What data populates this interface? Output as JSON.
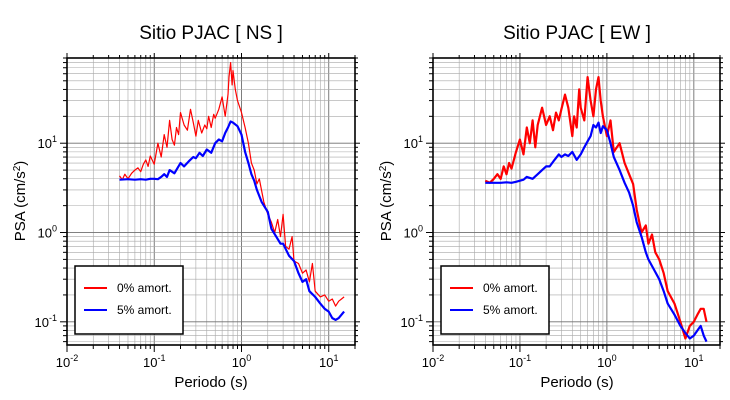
{
  "chart_data": [
    {
      "type": "line",
      "title": "Sitio PJAC [ NS ]",
      "xlabel": "Periodo (s)",
      "ylabel_main": "PSA (cm/s",
      "ylabel_sup": "2",
      "ylabel_end": ")",
      "x_scale": "log",
      "y_scale": "log",
      "xlim": [
        0.01,
        20
      ],
      "ylim": [
        0.055,
        90
      ],
      "grid": true,
      "legend_position": "bottom-left",
      "x_ticks": [
        {
          "base": "10",
          "exp": "-2",
          "value": 0.01
        },
        {
          "base": "10",
          "exp": "-1",
          "value": 0.1
        },
        {
          "base": "10",
          "exp": "0",
          "value": 1
        },
        {
          "base": "10",
          "exp": "1",
          "value": 10
        }
      ],
      "y_ticks": [
        {
          "base": "10",
          "exp": "-1",
          "value": 0.1
        },
        {
          "base": "10",
          "exp": "0",
          "value": 1
        },
        {
          "base": "10",
          "exp": "1",
          "value": 10
        }
      ],
      "series": [
        {
          "name": "0% amort.",
          "color": "#ff0000",
          "width": 1.2,
          "x": [
            0.04,
            0.043,
            0.046,
            0.05,
            0.055,
            0.06,
            0.065,
            0.07,
            0.075,
            0.08,
            0.085,
            0.09,
            0.1,
            0.11,
            0.12,
            0.13,
            0.14,
            0.15,
            0.16,
            0.17,
            0.18,
            0.19,
            0.2,
            0.22,
            0.24,
            0.26,
            0.28,
            0.3,
            0.32,
            0.35,
            0.38,
            0.4,
            0.42,
            0.45,
            0.48,
            0.5,
            0.55,
            0.6,
            0.65,
            0.7,
            0.72,
            0.75,
            0.78,
            0.8,
            0.85,
            0.9,
            1.0,
            1.1,
            1.2,
            1.3,
            1.4,
            1.5,
            1.6,
            1.8,
            2.0,
            2.2,
            2.4,
            2.6,
            2.8,
            3.0,
            3.2,
            3.5,
            3.8,
            4.0,
            4.5,
            5.0,
            5.5,
            6.0,
            6.5,
            7.0,
            8.0,
            9.0,
            10.0,
            11.0,
            12.0,
            13.0,
            14.0,
            15.0
          ],
          "y": [
            4.3,
            3.9,
            4.5,
            4.0,
            4.6,
            5.0,
            5.3,
            4.8,
            5.8,
            6.5,
            5.5,
            7.2,
            5.8,
            10.0,
            7.0,
            12.5,
            9.0,
            18.0,
            11.0,
            9.5,
            15.0,
            12.5,
            22.0,
            16.0,
            14.0,
            24.0,
            17.0,
            12.0,
            18.0,
            13.0,
            16.0,
            14.5,
            20.0,
            15.0,
            21.0,
            19.0,
            24.0,
            33.0,
            20.0,
            35.0,
            55.0,
            80.0,
            45.0,
            65.0,
            40.0,
            30.0,
            22.0,
            15.0,
            10.0,
            6.0,
            5.0,
            3.5,
            4.0,
            2.2,
            1.6,
            1.3,
            1.0,
            1.4,
            0.9,
            1.6,
            0.7,
            0.65,
            0.9,
            0.48,
            0.45,
            0.35,
            0.38,
            0.28,
            0.45,
            0.22,
            0.19,
            0.2,
            0.17,
            0.18,
            0.15,
            0.17,
            0.18,
            0.19
          ]
        },
        {
          "name": "5% amort.",
          "color": "#0000ff",
          "width": 2.2,
          "x": [
            0.04,
            0.05,
            0.06,
            0.07,
            0.08,
            0.09,
            0.1,
            0.11,
            0.12,
            0.13,
            0.14,
            0.15,
            0.17,
            0.2,
            0.22,
            0.25,
            0.28,
            0.3,
            0.33,
            0.36,
            0.4,
            0.45,
            0.5,
            0.55,
            0.6,
            0.65,
            0.7,
            0.75,
            0.8,
            0.9,
            1.0,
            1.1,
            1.2,
            1.3,
            1.4,
            1.5,
            1.7,
            2.0,
            2.2,
            2.5,
            2.8,
            3.0,
            3.5,
            4.0,
            4.5,
            5.0,
            5.5,
            6.0,
            7.0,
            8.0,
            9.0,
            10.0,
            11.0,
            12.0,
            13.0,
            14.0,
            15.0
          ],
          "y": [
            3.9,
            3.95,
            3.9,
            3.95,
            3.9,
            4.0,
            4.0,
            3.95,
            4.2,
            4.5,
            4.2,
            5.0,
            4.6,
            6.0,
            5.5,
            6.3,
            7.0,
            6.8,
            7.8,
            7.2,
            8.5,
            7.8,
            10.0,
            11.0,
            10.5,
            13.0,
            15.0,
            17.5,
            17.0,
            15.5,
            12.5,
            8.0,
            6.0,
            4.5,
            3.8,
            3.0,
            2.2,
            1.7,
            1.1,
            0.9,
            0.75,
            0.75,
            0.55,
            0.48,
            0.35,
            0.28,
            0.3,
            0.22,
            0.19,
            0.16,
            0.14,
            0.13,
            0.11,
            0.105,
            0.11,
            0.12,
            0.13
          ]
        }
      ]
    },
    {
      "type": "line",
      "title": "Sitio PJAC [ EW ]",
      "xlabel": "Periodo (s)",
      "ylabel_main": "PSA (cm/s",
      "ylabel_sup": "2",
      "ylabel_end": ")",
      "x_scale": "log",
      "y_scale": "log",
      "xlim": [
        0.01,
        20
      ],
      "ylim": [
        0.055,
        90
      ],
      "grid": true,
      "legend_position": "bottom-left",
      "x_ticks": [
        {
          "base": "10",
          "exp": "-2",
          "value": 0.01
        },
        {
          "base": "10",
          "exp": "-1",
          "value": 0.1
        },
        {
          "base": "10",
          "exp": "0",
          "value": 1
        },
        {
          "base": "10",
          "exp": "1",
          "value": 10
        }
      ],
      "y_ticks": [
        {
          "base": "10",
          "exp": "-1",
          "value": 0.1
        },
        {
          "base": "10",
          "exp": "0",
          "value": 1
        },
        {
          "base": "10",
          "exp": "1",
          "value": 10
        }
      ],
      "series": [
        {
          "name": "0% amort.",
          "color": "#ff0000",
          "width": 2.2,
          "x": [
            0.04,
            0.045,
            0.05,
            0.055,
            0.06,
            0.065,
            0.07,
            0.075,
            0.08,
            0.09,
            0.1,
            0.11,
            0.12,
            0.13,
            0.14,
            0.15,
            0.16,
            0.18,
            0.2,
            0.22,
            0.24,
            0.26,
            0.28,
            0.3,
            0.33,
            0.36,
            0.4,
            0.42,
            0.45,
            0.48,
            0.5,
            0.55,
            0.6,
            0.65,
            0.7,
            0.75,
            0.8,
            0.85,
            0.9,
            1.0,
            1.1,
            1.2,
            1.4,
            1.6,
            1.8,
            2.0,
            2.2,
            2.5,
            2.8,
            3.0,
            3.3,
            3.6,
            4.0,
            4.5,
            5.0,
            6.0,
            7.0,
            8.0,
            9.0,
            10.0,
            11.0,
            12.0,
            13.0,
            14.0
          ],
          "y": [
            3.8,
            3.6,
            4.0,
            4.5,
            4.0,
            5.5,
            4.5,
            6.0,
            5.2,
            8.0,
            11.0,
            7.5,
            15.0,
            10.0,
            18.0,
            9.0,
            16.0,
            25.0,
            16.0,
            20.0,
            14.0,
            22.0,
            18.0,
            24.0,
            35.0,
            25.0,
            12.0,
            20.0,
            15.0,
            40.0,
            25.0,
            18.0,
            55.0,
            30.0,
            20.0,
            40.0,
            55.0,
            30.0,
            20.0,
            12.0,
            18.0,
            8.0,
            10.0,
            6.0,
            4.5,
            3.5,
            1.8,
            1.0,
            1.2,
            0.75,
            0.95,
            0.6,
            0.5,
            0.35,
            0.22,
            0.16,
            0.1,
            0.065,
            0.09,
            0.1,
            0.12,
            0.14,
            0.14,
            0.1
          ]
        },
        {
          "name": "5% amort.",
          "color": "#0000ff",
          "width": 2.2,
          "x": [
            0.04,
            0.05,
            0.06,
            0.07,
            0.08,
            0.09,
            0.1,
            0.11,
            0.12,
            0.14,
            0.16,
            0.18,
            0.2,
            0.22,
            0.25,
            0.28,
            0.3,
            0.33,
            0.36,
            0.4,
            0.45,
            0.5,
            0.55,
            0.6,
            0.65,
            0.7,
            0.75,
            0.8,
            0.85,
            0.9,
            1.0,
            1.1,
            1.2,
            1.4,
            1.6,
            1.8,
            2.0,
            2.2,
            2.5,
            2.8,
            3.0,
            3.5,
            4.0,
            4.5,
            5.0,
            6.0,
            7.0,
            8.0,
            9.0,
            10.0,
            11.0,
            12.0,
            13.0,
            14.0
          ],
          "y": [
            3.6,
            3.6,
            3.6,
            3.65,
            3.6,
            3.7,
            3.8,
            3.9,
            4.2,
            4.0,
            4.5,
            5.0,
            5.5,
            5.5,
            6.5,
            7.5,
            7.0,
            7.5,
            7.2,
            8.0,
            6.5,
            7.5,
            9.0,
            10.5,
            12.0,
            16.0,
            15.0,
            17.0,
            13.0,
            15.5,
            14.0,
            10.0,
            7.0,
            5.0,
            3.6,
            2.8,
            2.0,
            1.3,
            0.9,
            0.6,
            0.5,
            0.38,
            0.3,
            0.22,
            0.16,
            0.12,
            0.09,
            0.075,
            0.065,
            0.07,
            0.08,
            0.09,
            0.07,
            0.06
          ]
        }
      ]
    }
  ]
}
